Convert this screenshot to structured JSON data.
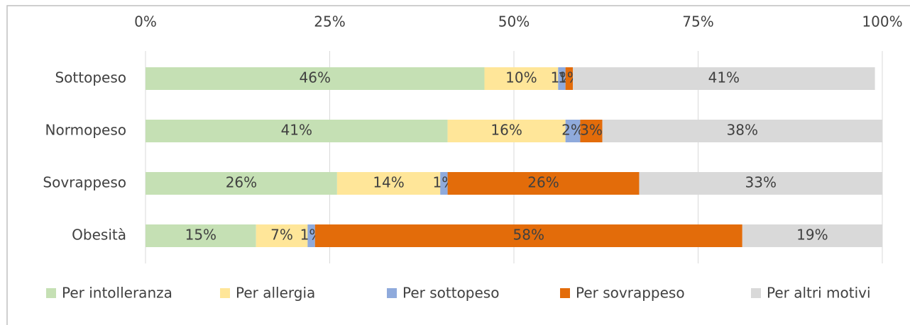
{
  "chart_data": {
    "type": "stacked-barh",
    "categories": [
      "Sottopeso",
      "Normopeso",
      "Sovrappeso",
      "Obesità"
    ],
    "series": [
      {
        "name": "Per intolleranza",
        "color": "#c5e0b4",
        "values": [
          46,
          41,
          26,
          15
        ],
        "value_labels": [
          "46%",
          "41%",
          "26%",
          "15%"
        ]
      },
      {
        "name": "Per allergia",
        "color": "#ffe699",
        "values": [
          10,
          16,
          14,
          7
        ],
        "value_labels": [
          "10%",
          "16%",
          "14%",
          "7%"
        ]
      },
      {
        "name": "Per sottopeso",
        "color": "#8faadc",
        "values": [
          1,
          2,
          1,
          1
        ],
        "value_labels": [
          "1%",
          "2%",
          "1%",
          "1%"
        ]
      },
      {
        "name": "Per sovrappeso",
        "color": "#e36c0a",
        "values": [
          1,
          3,
          26,
          58
        ],
        "value_labels": [
          "1%",
          "3%",
          "26%",
          "58%"
        ]
      },
      {
        "name": "Per altri motivi",
        "color": "#d9d9d9",
        "values": [
          41,
          38,
          33,
          19
        ],
        "value_labels": [
          "41%",
          "38%",
          "33%",
          "19%"
        ]
      }
    ],
    "xlim": [
      0,
      100
    ],
    "xticks": [
      {
        "value": 0,
        "label": "0%"
      },
      {
        "value": 25,
        "label": "25%"
      },
      {
        "value": 50,
        "label": "50%"
      },
      {
        "value": 75,
        "label": "75%"
      },
      {
        "value": 100,
        "label": "100%"
      }
    ],
    "grid": true,
    "legend": "bottom"
  }
}
